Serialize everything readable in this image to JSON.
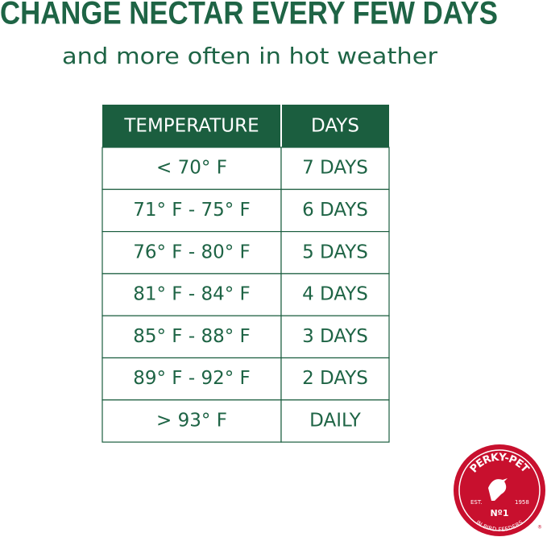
{
  "header": {
    "title": "CHANGE NECTAR EVERY FEW DAYS",
    "subtitle": "and more often in hot weather"
  },
  "table": {
    "columns": [
      "TEMPERATURE",
      "DAYS"
    ],
    "rows": [
      [
        "< 70° F",
        "7 DAYS"
      ],
      [
        "71° F - 75° F",
        "6 DAYS"
      ],
      [
        "76° F - 80° F",
        "5 DAYS"
      ],
      [
        "81° F - 84° F",
        "4 DAYS"
      ],
      [
        "85° F - 88° F",
        "3 DAYS"
      ],
      [
        "89° F - 92° F",
        "2 DAYS"
      ],
      [
        "> 93° F",
        "DAILY"
      ]
    ]
  },
  "logo": {
    "brand": "PERKY-PET",
    "est_label": "EST.",
    "est_year": "1958",
    "rank": "Nº1",
    "tagline": "IN BIRD FEEDERS",
    "registered": "®"
  }
}
